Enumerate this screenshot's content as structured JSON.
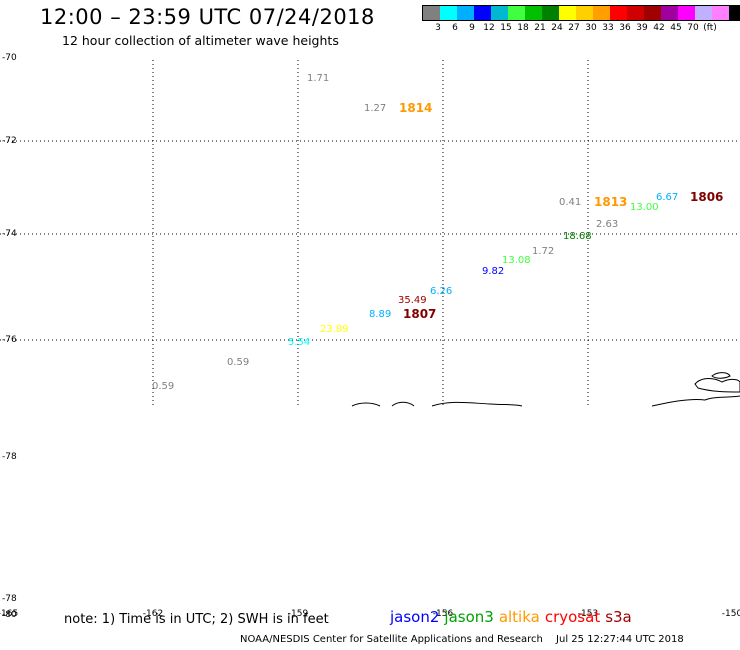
{
  "header": {
    "title": "12:00 – 23:59 UTC 07/24/2018",
    "subtitle": "12 hour collection of altimeter wave heights"
  },
  "colorbar": {
    "colors": [
      "#808080",
      "#00ffff",
      "#00b0ff",
      "#0000ff",
      "#00b8d0",
      "#40ff40",
      "#00c000",
      "#008000",
      "#ffff00",
      "#ffd000",
      "#ffa000",
      "#ff0000",
      "#d00000",
      "#a00000",
      "#a000a0",
      "#ff00ff",
      "#c0b0ff",
      "#ff80ff",
      "#000000"
    ],
    "labels": [
      "3",
      "6",
      "9",
      "12",
      "15",
      "18",
      "21",
      "24",
      "27",
      "30",
      "33",
      "36",
      "39",
      "42",
      "45",
      "70",
      "(ft)"
    ]
  },
  "map": {
    "lat_labels": [
      "-70",
      "-72",
      "-74",
      "-76",
      "-78",
      "-78",
      "-80"
    ],
    "lon_labels": [
      "-165",
      "-162",
      "-159",
      "-156",
      "-153",
      "-150"
    ]
  },
  "observations": [
    {
      "text": "1.71",
      "color": "#808080"
    },
    {
      "text": "1.27",
      "color": "#808080"
    },
    {
      "text": "0.41",
      "color": "#808080"
    },
    {
      "text": "13.00",
      "color": "#40ff40"
    },
    {
      "text": "6.67",
      "color": "#00b0ff"
    },
    {
      "text": "2.63",
      "color": "#808080"
    },
    {
      "text": "18.68",
      "color": "#008000"
    },
    {
      "text": "1.72",
      "color": "#808080"
    },
    {
      "text": "13.08",
      "color": "#40ff40"
    },
    {
      "text": "9.82",
      "color": "#0000ff"
    },
    {
      "text": "6.26",
      "color": "#00b0ff"
    },
    {
      "text": "35.49",
      "color": "#a00000"
    },
    {
      "text": "8.89",
      "color": "#00b0ff"
    },
    {
      "text": "23.89",
      "color": "#ffff00"
    },
    {
      "text": "5.54",
      "color": "#00ffff"
    },
    {
      "text": "0.59",
      "color": "#808080"
    },
    {
      "text": "0.59",
      "color": "#808080"
    }
  ],
  "pass_labels": [
    {
      "text": "1814",
      "color": "#ff9900"
    },
    {
      "text": "1813",
      "color": "#ff9900"
    },
    {
      "text": "1806",
      "color": "#800000"
    },
    {
      "text": "1807",
      "color": "#800000"
    }
  ],
  "footer": {
    "note": "note:  1) Time is in UTC;  2) SWH is in feet",
    "legend": [
      {
        "text": "jason2",
        "color": "#0000ff"
      },
      {
        "text": "jason3",
        "color": "#00a000"
      },
      {
        "text": "altika",
        "color": "#ff9900"
      },
      {
        "text": "cryosat",
        "color": "#ff0000"
      },
      {
        "text": "s3a",
        "color": "#a00000"
      }
    ],
    "credit_org": "NOAA/NESDIS Center for Satellite Applications and Research",
    "credit_time": "Jul 25 12:27:44 UTC 2018"
  }
}
